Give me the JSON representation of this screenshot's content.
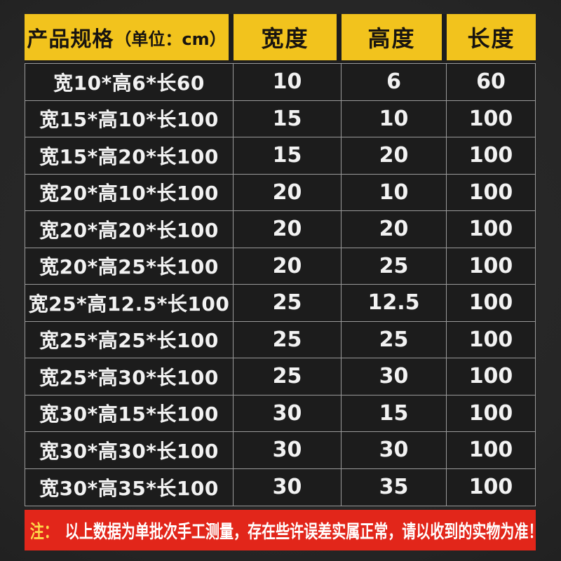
{
  "title": {
    "main": "产品规格",
    "unit": "（单位：cm）"
  },
  "columns": {
    "width": "宽度",
    "height": "高度",
    "length": "长度"
  },
  "note": {
    "label": "注：",
    "text": "以上数据为单批次手工测量，存在些许误差实属正常，请以收到的实物为准！"
  },
  "colors": {
    "header_yellow": "#F2C31D",
    "note_red": "#E2261A",
    "note_label_yellow": "#FFD94A",
    "cell_bg": "#1C1C1C",
    "grid_line": "#9A9A9A"
  },
  "chart_data": {
    "type": "table",
    "title": "产品规格（单位：cm）",
    "columns": [
      "产品规格（单位：cm）",
      "宽度",
      "高度",
      "长度"
    ],
    "rows": [
      [
        "宽10*高6*长60",
        "10",
        "6",
        "60"
      ],
      [
        "宽15*高10*长100",
        "15",
        "10",
        "100"
      ],
      [
        "宽15*高20*长100",
        "15",
        "20",
        "100"
      ],
      [
        "宽20*高10*长100",
        "20",
        "10",
        "100"
      ],
      [
        "宽20*高20*长100",
        "20",
        "20",
        "100"
      ],
      [
        "宽20*高25*长100",
        "20",
        "25",
        "100"
      ],
      [
        "宽25*高12.5*长100",
        "25",
        "12.5",
        "100"
      ],
      [
        "宽25*高25*长100",
        "25",
        "25",
        "100"
      ],
      [
        "宽25*高30*长100",
        "25",
        "30",
        "100"
      ],
      [
        "宽30*高15*长100",
        "30",
        "15",
        "100"
      ],
      [
        "宽30*高30*长100",
        "30",
        "30",
        "100"
      ],
      [
        "宽30*高35*长100",
        "30",
        "35",
        "100"
      ]
    ],
    "note": "注：以上数据为单批次手工测量，存在些许误差实属正常，请以收到的实物为准！",
    "layout": {
      "header_position": "top",
      "grid": true,
      "unit": "cm"
    }
  }
}
